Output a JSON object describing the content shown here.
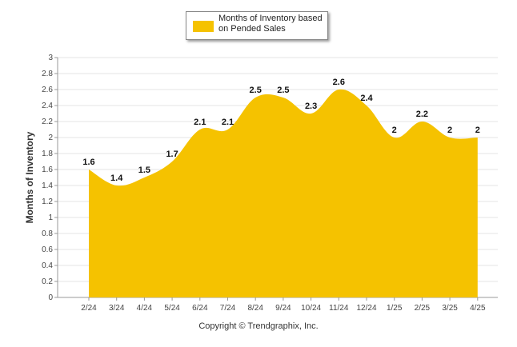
{
  "legend": {
    "label": "Months of Inventory based on Pended Sales",
    "color": "#F5C200"
  },
  "copyright": "Copyright © Trendgraphix, Inc.",
  "chart_data": {
    "type": "area",
    "ylabel": "Months of Inventory",
    "xlabel": "",
    "ylim": [
      0,
      3
    ],
    "yticks": [
      "0",
      "0.2",
      "0.4",
      "0.6",
      "0.8",
      "1",
      "1.2",
      "1.4",
      "1.6",
      "1.8",
      "2",
      "2.2",
      "2.4",
      "2.6",
      "2.8",
      "3"
    ],
    "categories": [
      "2/24",
      "3/24",
      "4/24",
      "5/24",
      "6/24",
      "7/24",
      "8/24",
      "9/24",
      "10/24",
      "11/24",
      "12/24",
      "1/25",
      "2/25",
      "3/25",
      "4/25"
    ],
    "series": [
      {
        "name": "Months of Inventory based on Pended Sales",
        "values": [
          1.6,
          1.4,
          1.5,
          1.7,
          2.1,
          2.1,
          2.5,
          2.5,
          2.3,
          2.6,
          2.4,
          2,
          2.2,
          2,
          2
        ],
        "labels": [
          "1.6",
          "1.4",
          "1.5",
          "1.7",
          "2.1",
          "2.1",
          "2.5",
          "2.5",
          "2.3",
          "2.6",
          "2.4",
          "2",
          "2.2",
          "2",
          "2"
        ],
        "color": "#F5C200"
      }
    ],
    "grid": true,
    "legend_position": "top-center"
  }
}
